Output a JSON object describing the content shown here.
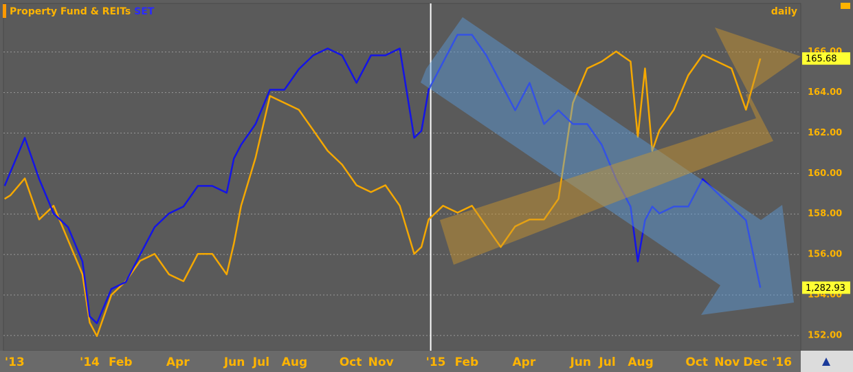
{
  "chart_data": {
    "type": "line",
    "title": "Property Fund & REITs",
    "title_suffix": "SET",
    "frequency": "daily",
    "xlim": [
      -2.74,
      24.9
    ],
    "xticks": [
      {
        "value": -2.6,
        "label": "'13"
      },
      {
        "value": 0,
        "label": "'14"
      },
      {
        "value": 1,
        "label": "Feb"
      },
      {
        "value": 3,
        "label": "Apr"
      },
      {
        "value": 5,
        "label": "Jun"
      },
      {
        "value": 6,
        "label": "Jul"
      },
      {
        "value": 7,
        "label": "Aug"
      },
      {
        "value": 9,
        "label": "Oct"
      },
      {
        "value": 10,
        "label": "Nov"
      },
      {
        "value": 12,
        "label": "'15"
      },
      {
        "value": 13,
        "label": "Feb"
      },
      {
        "value": 15,
        "label": "Apr"
      },
      {
        "value": 17,
        "label": "Jun"
      },
      {
        "value": 18,
        "label": "Jul"
      },
      {
        "value": 19,
        "label": "Aug"
      },
      {
        "value": 21,
        "label": "Oct"
      },
      {
        "value": 22,
        "label": "Nov"
      },
      {
        "value": 23,
        "label": "Dec"
      },
      {
        "value": 24,
        "label": "'16"
      }
    ],
    "ylim": [
      151.25,
      168.4
    ],
    "yticks": [
      {
        "value": 152,
        "label": "152.00"
      },
      {
        "value": 154,
        "label": "154.00"
      },
      {
        "value": 156,
        "label": "156.00"
      },
      {
        "value": 158,
        "label": "158.00"
      },
      {
        "value": 160,
        "label": "160.00"
      },
      {
        "value": 162,
        "label": "162.00"
      },
      {
        "value": 164,
        "label": "164.00"
      },
      {
        "value": 166,
        "label": "166.00"
      }
    ],
    "y2lim": [
      1206,
      1630
    ],
    "grid": true,
    "x": [
      -2.7,
      -2.5,
      -2,
      -1.5,
      -1,
      -0.5,
      0,
      0.25,
      0.5,
      1,
      1.5,
      2,
      2.5,
      3,
      3.5,
      4,
      4.5,
      5,
      5.25,
      5.5,
      6,
      6.5,
      7,
      7.5,
      8,
      8.5,
      9,
      9.5,
      10,
      10.5,
      11,
      11.5,
      11.75,
      12,
      12.5,
      13,
      13.5,
      14,
      14.5,
      15,
      15.5,
      16,
      16.5,
      17,
      17.5,
      18,
      18.5,
      19,
      19.25,
      19.5,
      19.75,
      20,
      20.5,
      21,
      21.5,
      22,
      22.5,
      23,
      23.5
    ],
    "series": [
      {
        "name": "Property Fund & REITs",
        "color": "#f5a800",
        "last_value_label": "165.68",
        "values": [
          158.75,
          158.92,
          159.76,
          157.73,
          158.41,
          156.71,
          155.02,
          152.64,
          151.97,
          154.0,
          154.68,
          155.69,
          156.03,
          155.02,
          154.68,
          156.03,
          156.03,
          155.02,
          156.54,
          158.41,
          160.78,
          163.83,
          163.49,
          163.15,
          162.14,
          161.12,
          160.44,
          159.42,
          159.08,
          159.42,
          158.41,
          156.03,
          156.37,
          157.73,
          158.41,
          158.07,
          158.41,
          157.39,
          156.37,
          157.39,
          157.73,
          157.73,
          158.75,
          163.49,
          165.19,
          165.53,
          166.03,
          165.53,
          161.8,
          165.19,
          161.12,
          162.14,
          163.15,
          164.85,
          165.86,
          165.53,
          165.19,
          163.15,
          165.68
        ]
      },
      {
        "name": "SET",
        "color": "#1414e6",
        "axis": "y2",
        "last_value_label": "1,282.93",
        "values": [
          1407.2,
          1424.0,
          1465.9,
          1415.6,
          1373.6,
          1356.8,
          1314.9,
          1247.8,
          1239.4,
          1281.3,
          1289.7,
          1323.3,
          1356.8,
          1373.6,
          1382.0,
          1407.2,
          1407.2,
          1398.8,
          1440.7,
          1457.5,
          1482.7,
          1524.6,
          1524.6,
          1549.8,
          1566.6,
          1575.0,
          1566.6,
          1533.0,
          1566.6,
          1566.6,
          1575.0,
          1465.9,
          1474.3,
          1524.6,
          1558.2,
          1591.8,
          1591.8,
          1566.6,
          1533.0,
          1499.5,
          1533.0,
          1482.7,
          1499.5,
          1482.7,
          1482.7,
          1457.5,
          1415.6,
          1382.0,
          1314.9,
          1365.2,
          1382.0,
          1373.6,
          1382.0,
          1382.0,
          1415.6,
          1398.8,
          1382.0,
          1365.2,
          1282.93
        ]
      }
    ]
  }
}
